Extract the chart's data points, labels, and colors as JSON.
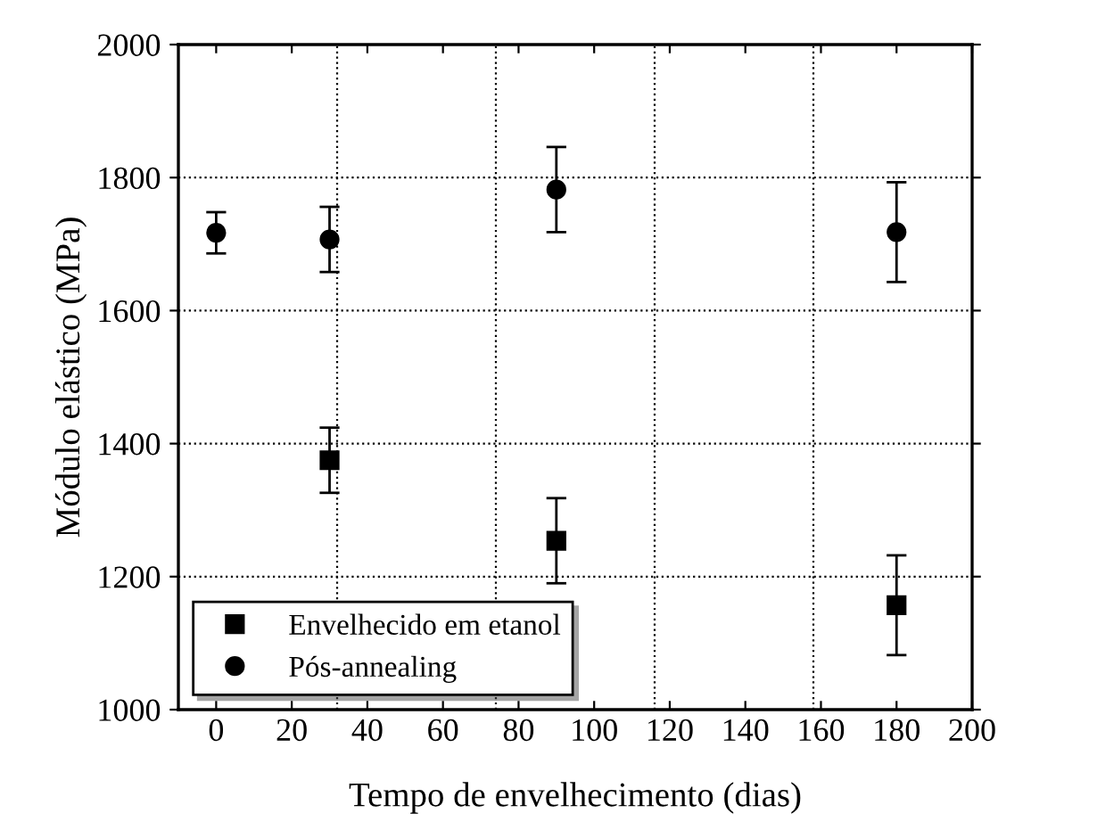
{
  "chart_data": {
    "type": "scatter",
    "xlabel": "Tempo de envelhecimento (dias)",
    "ylabel": "Módulo elástico (MPa)",
    "xlim": [
      -10,
      200
    ],
    "xticks": [
      0,
      20,
      40,
      60,
      80,
      100,
      120,
      140,
      160,
      180,
      200
    ],
    "ylim": [
      1000,
      2000
    ],
    "yticks": [
      1000,
      1200,
      1400,
      1600,
      1800,
      2000
    ],
    "grid": "y",
    "legend": "bottom left",
    "series": [
      {
        "name": "Envelhecido em etanol",
        "color": "#000000",
        "marker": "square",
        "x": [
          30,
          90,
          180
        ],
        "values": [
          1375,
          1254,
          1157
        ],
        "errors": [
          49,
          64,
          75
        ]
      },
      {
        "name": "Pós-annealing",
        "color": "#000000",
        "marker": "circle",
        "x": [
          0,
          30,
          90,
          180
        ],
        "values": [
          1717,
          1707,
          1782,
          1718
        ],
        "errors": [
          31,
          49,
          64,
          75
        ]
      }
    ],
    "ref_lines": [
      {
        "axis": "x",
        "value": 32,
        "line_style": "dotted",
        "color": "#000000"
      },
      {
        "axis": "x",
        "value": 74,
        "line_style": "dotted",
        "color": "#000000"
      },
      {
        "axis": "x",
        "value": 116,
        "line_style": "dotted",
        "color": "#000000"
      },
      {
        "axis": "x",
        "value": 158,
        "line_style": "dotted",
        "color": "#000000"
      }
    ]
  }
}
